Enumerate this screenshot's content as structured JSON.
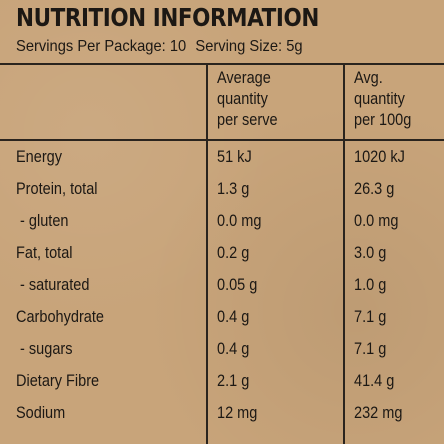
{
  "title": "NUTRITION INFORMATION",
  "servings": {
    "per_package": "Servings Per Package: 10",
    "serving_size": "Serving Size: 5g"
  },
  "columns": {
    "col2": "Average\nquantity\nper serve",
    "col3": "Avg.\nquantity\nper 100g"
  },
  "rows": [
    {
      "name": "Energy",
      "per_serve": "51 kJ",
      "per_100g": "1020 kJ"
    },
    {
      "name": "Protein, total",
      "per_serve": "1.3 g",
      "per_100g": "26.3 g"
    },
    {
      "name": " - gluten",
      "per_serve": "0.0 mg",
      "per_100g": "0.0 mg"
    },
    {
      "name": "Fat, total",
      "per_serve": "0.2 g",
      "per_100g": "3.0 g"
    },
    {
      "name": " - saturated",
      "per_serve": "0.05 g",
      "per_100g": "1.0 g"
    },
    {
      "name": "Carbohydrate",
      "per_serve": "0.4 g",
      "per_100g": "7.1 g"
    },
    {
      "name": " - sugars",
      "per_serve": "0.4 g",
      "per_100g": "7.1 g"
    },
    {
      "name": "Dietary Fibre",
      "per_serve": "2.1 g",
      "per_100g": "41.4 g"
    },
    {
      "name": "Sodium",
      "per_serve": "12 mg",
      "per_100g": "232 mg"
    }
  ]
}
